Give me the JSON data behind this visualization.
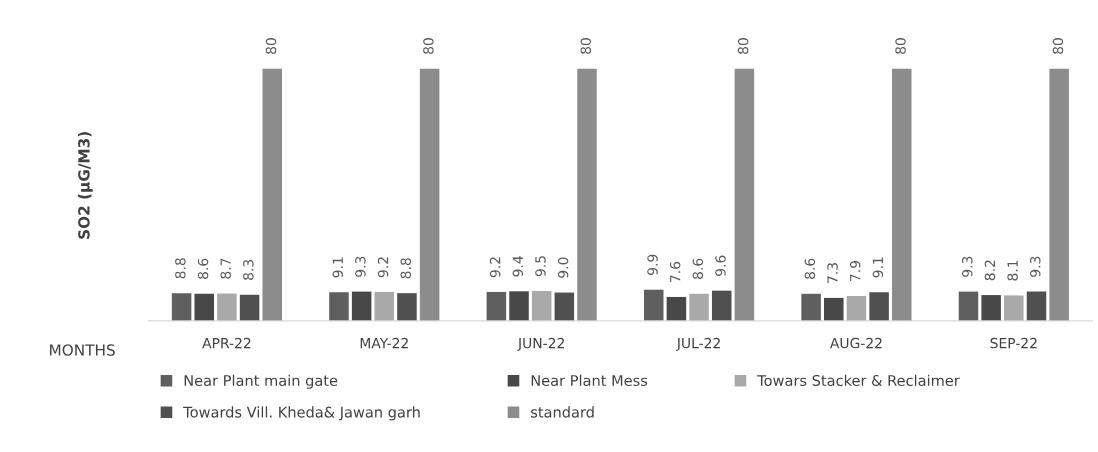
{
  "chart_data": {
    "type": "bar",
    "ylabel": "SO2 (µG/M3)",
    "xlabel": "MONTHS",
    "categories": [
      "APR-22",
      "MAY-22",
      "JUN-22",
      "JUL-22",
      "AUG-22",
      "SEP-22"
    ],
    "series": [
      {
        "name": "Near Plant main gate",
        "color": "#5f5f5f",
        "values": [
          8.8,
          9.1,
          9.2,
          9.9,
          8.6,
          9.3
        ]
      },
      {
        "name": "Near Plant Mess",
        "color": "#484848",
        "values": [
          8.6,
          9.3,
          9.4,
          7.6,
          7.3,
          8.2
        ]
      },
      {
        "name": "Towars Stacker & Reclaimer",
        "color": "#a9a9a9",
        "values": [
          8.7,
          9.2,
          9.5,
          8.6,
          7.9,
          8.1
        ]
      },
      {
        "name": "Towards Vill. Kheda& Jawan garh",
        "color": "#505050",
        "values": [
          8.3,
          8.8,
          9.0,
          9.6,
          9.1,
          9.3
        ],
        "value_labels": [
          "8.3",
          "8.8",
          "9.0",
          "9.6",
          "9.1",
          "9.3"
        ]
      },
      {
        "name": "standard",
        "color": "#8c8c8c",
        "values": [
          80,
          80,
          80,
          80,
          80,
          80
        ]
      }
    ],
    "data_labels": true,
    "grid": false,
    "legend": "bottom",
    "tick_labels": "x"
  }
}
